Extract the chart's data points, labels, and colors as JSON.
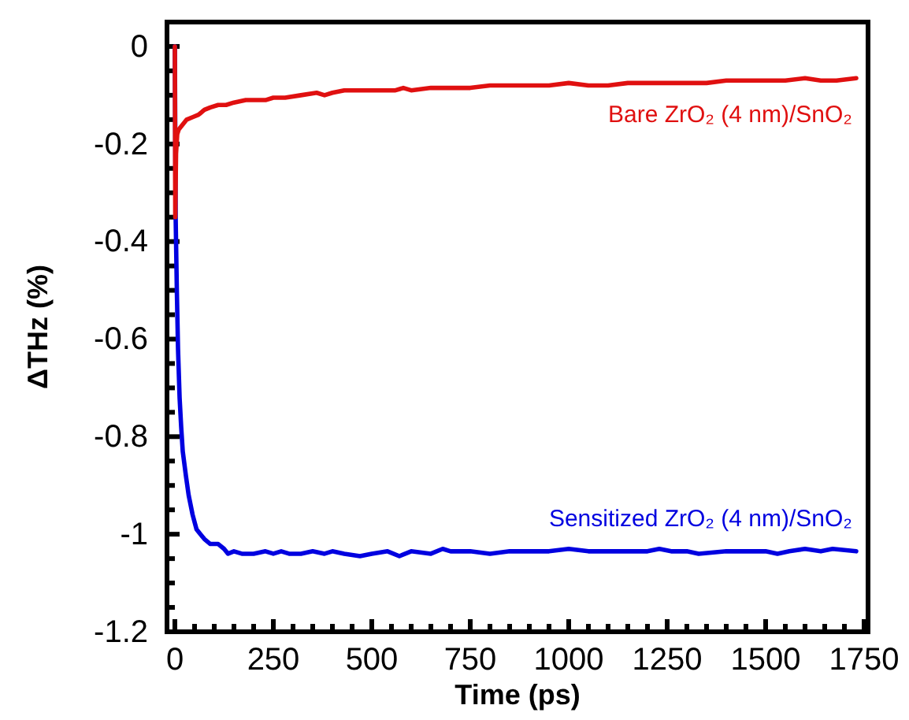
{
  "chart_data": {
    "type": "line",
    "xlabel": "Time (ps)",
    "ylabel": "ΔTHz (%)",
    "xlim": [
      -20,
      1760
    ],
    "ylim": [
      -1.2,
      0.05
    ],
    "xticks": [
      0,
      {
        "value": 50,
        "label": null
      },
      {
        "value": 100,
        "label": null
      },
      {
        "value": 150,
        "label": null
      },
      {
        "value": 200,
        "label": null
      },
      250,
      {
        "value": 300,
        "label": null
      },
      {
        "value": 350,
        "label": null
      },
      {
        "value": 400,
        "label": null
      },
      {
        "value": 450,
        "label": null
      },
      500,
      {
        "value": 550,
        "label": null
      },
      {
        "value": 600,
        "label": null
      },
      {
        "value": 650,
        "label": null
      },
      {
        "value": 700,
        "label": null
      },
      750,
      {
        "value": 800,
        "label": null
      },
      {
        "value": 850,
        "label": null
      },
      {
        "value": 900,
        "label": null
      },
      {
        "value": 950,
        "label": null
      },
      1000,
      {
        "value": 1050,
        "label": null
      },
      {
        "value": 1100,
        "label": null
      },
      {
        "value": 1150,
        "label": null
      },
      {
        "value": 1200,
        "label": null
      },
      1250,
      {
        "value": 1300,
        "label": null
      },
      {
        "value": 1350,
        "label": null
      },
      {
        "value": 1400,
        "label": null
      },
      {
        "value": 1450,
        "label": null
      },
      1500,
      {
        "value": 1550,
        "label": null
      },
      {
        "value": 1600,
        "label": null
      },
      {
        "value": 1650,
        "label": null
      },
      {
        "value": 1700,
        "label": null
      },
      1750
    ],
    "yticks": [
      {
        "value": -1.2,
        "label": "-1.2"
      },
      {
        "value": -1.15,
        "label": null
      },
      {
        "value": -1.1,
        "label": null
      },
      {
        "value": -1.05,
        "label": null
      },
      {
        "value": -1,
        "label": "-1"
      },
      {
        "value": -0.95,
        "label": null
      },
      {
        "value": -0.9,
        "label": null
      },
      {
        "value": -0.85,
        "label": null
      },
      {
        "value": -0.8,
        "label": "-0.8"
      },
      {
        "value": -0.75,
        "label": null
      },
      {
        "value": -0.7,
        "label": null
      },
      {
        "value": -0.65,
        "label": null
      },
      {
        "value": -0.6,
        "label": "-0.6"
      },
      {
        "value": -0.55,
        "label": null
      },
      {
        "value": -0.5,
        "label": null
      },
      {
        "value": -0.45,
        "label": null
      },
      {
        "value": -0.4,
        "label": "-0.4"
      },
      {
        "value": -0.35,
        "label": null
      },
      {
        "value": -0.3,
        "label": null
      },
      {
        "value": -0.25,
        "label": null
      },
      {
        "value": -0.2,
        "label": "-0.2"
      },
      {
        "value": -0.15,
        "label": null
      },
      {
        "value": -0.1,
        "label": null
      },
      {
        "value": -0.05,
        "label": null
      },
      {
        "value": 0,
        "label": "0"
      }
    ],
    "grid": false,
    "legend": false,
    "marker": "none",
    "line_style": "solid",
    "series": [
      {
        "name": "Sensitized ZrO₂ (4 nm)/SnO₂",
        "color": "#0000e0",
        "x": [
          0,
          2,
          5,
          8,
          12,
          16,
          20,
          28,
          35,
          45,
          55,
          65,
          75,
          90,
          110,
          125,
          135,
          150,
          170,
          200,
          230,
          250,
          270,
          290,
          320,
          350,
          380,
          400,
          430,
          470,
          500,
          540,
          570,
          600,
          650,
          680,
          700,
          750,
          800,
          850,
          900,
          950,
          1000,
          1050,
          1100,
          1150,
          1200,
          1230,
          1260,
          1300,
          1330,
          1400,
          1450,
          1500,
          1530,
          1560,
          1600,
          1640,
          1670,
          1730
        ],
        "values": [
          0,
          -0.35,
          -0.5,
          -0.62,
          -0.72,
          -0.78,
          -0.83,
          -0.88,
          -0.92,
          -0.96,
          -0.99,
          -1.0,
          -1.01,
          -1.02,
          -1.02,
          -1.03,
          -1.04,
          -1.035,
          -1.04,
          -1.04,
          -1.035,
          -1.04,
          -1.035,
          -1.04,
          -1.04,
          -1.035,
          -1.04,
          -1.035,
          -1.04,
          -1.045,
          -1.04,
          -1.035,
          -1.045,
          -1.035,
          -1.04,
          -1.03,
          -1.035,
          -1.035,
          -1.04,
          -1.035,
          -1.035,
          -1.035,
          -1.03,
          -1.035,
          -1.035,
          -1.035,
          -1.035,
          -1.03,
          -1.035,
          -1.035,
          -1.04,
          -1.035,
          -1.035,
          -1.035,
          -1.04,
          -1.035,
          -1.03,
          -1.035,
          -1.03,
          -1.035
        ]
      },
      {
        "name": "Bare ZrO₂ (4 nm)/SnO₂",
        "color": "#e01010",
        "x": [
          0,
          1,
          3,
          6,
          10,
          20,
          30,
          45,
          60,
          75,
          90,
          110,
          130,
          150,
          180,
          200,
          230,
          250,
          280,
          320,
          360,
          380,
          400,
          430,
          470,
          520,
          560,
          580,
          600,
          650,
          700,
          750,
          800,
          850,
          900,
          950,
          1000,
          1050,
          1100,
          1150,
          1200,
          1250,
          1300,
          1350,
          1400,
          1450,
          1500,
          1550,
          1600,
          1640,
          1680,
          1730
        ],
        "values": [
          0,
          -0.35,
          -0.22,
          -0.18,
          -0.17,
          -0.16,
          -0.15,
          -0.145,
          -0.14,
          -0.13,
          -0.125,
          -0.12,
          -0.12,
          -0.115,
          -0.11,
          -0.11,
          -0.11,
          -0.105,
          -0.105,
          -0.1,
          -0.095,
          -0.1,
          -0.095,
          -0.09,
          -0.09,
          -0.09,
          -0.09,
          -0.085,
          -0.09,
          -0.085,
          -0.085,
          -0.085,
          -0.08,
          -0.08,
          -0.08,
          -0.08,
          -0.075,
          -0.08,
          -0.08,
          -0.075,
          -0.075,
          -0.075,
          -0.075,
          -0.075,
          -0.07,
          -0.07,
          -0.07,
          -0.07,
          -0.065,
          -0.07,
          -0.07,
          -0.065
        ]
      }
    ]
  }
}
